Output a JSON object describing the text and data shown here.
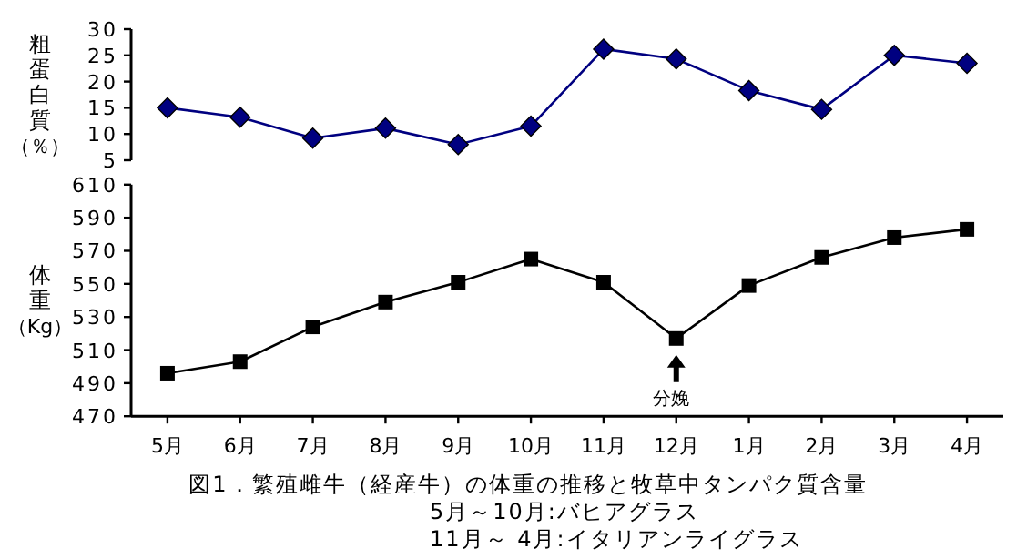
{
  "chart_data": [
    {
      "type": "line",
      "ylabel": "粗蛋白質（％）",
      "categories": [
        null,
        null,
        null,
        null,
        null,
        null,
        null,
        null,
        null,
        null,
        null,
        null
      ],
      "series": [
        {
          "color": "#000080",
          "values": [
            15,
            13.2,
            9.2,
            11.1,
            8.0,
            11.5,
            26.2,
            24.3,
            18.3,
            14.7,
            25.0,
            23.5
          ]
        }
      ],
      "ylim": [
        5,
        30
      ],
      "yticks": [
        5,
        10,
        15,
        20,
        25,
        30
      ],
      "tick_labels": "y",
      "marker": "diamond"
    },
    {
      "type": "line",
      "ylabel": "体重（Kg）",
      "title": "図1．繁殖雌牛（経産牛）の体重の推移と牧草中タンパク質含量",
      "categories": [
        "5月",
        "6月",
        "7月",
        "8月",
        "9月",
        "10月",
        "11月",
        "12月",
        "1月",
        "2月",
        "3月",
        "4月"
      ],
      "series": [
        {
          "color": "#000000",
          "values": [
            496,
            503,
            524,
            539,
            551,
            565,
            551,
            517,
            549,
            566,
            578,
            583
          ]
        }
      ],
      "ylim": [
        470,
        610
      ],
      "yticks": [
        470,
        490,
        510,
        530,
        550,
        570,
        590,
        610
      ],
      "marker": "square",
      "annotations": [
        {
          "text": "分娩",
          "x": "12月",
          "y": 517
        },
        "5月～10月:バヒアグラス",
        "11月～ 4月:イタリアンライグラス"
      ]
    }
  ]
}
